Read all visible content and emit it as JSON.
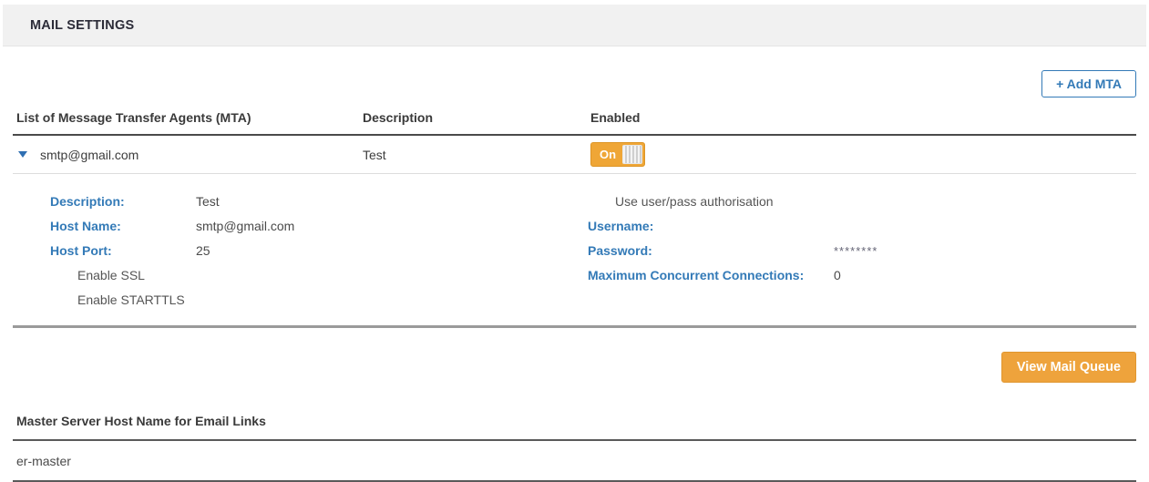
{
  "header": {
    "title": "MAIL SETTINGS"
  },
  "toolbar": {
    "add_mta_label": "+ Add MTA"
  },
  "mta_table": {
    "columns": {
      "agents": "List of Message Transfer Agents (MTA)",
      "description": "Description",
      "enabled": "Enabled"
    },
    "row": {
      "name": "smtp@gmail.com",
      "description": "Test",
      "toggle_label": "On",
      "expander_icon": "caret-down-icon"
    },
    "details": {
      "left": [
        {
          "label": "Description:",
          "value": "Test"
        },
        {
          "label": "Host Name:",
          "value": "smtp@gmail.com"
        },
        {
          "label": "Host Port:",
          "value": "25"
        }
      ],
      "left_options": [
        "Enable SSL",
        "Enable STARTTLS"
      ],
      "right_option": "Use user/pass authorisation",
      "right": [
        {
          "label": "Username:",
          "value": ""
        },
        {
          "label": "Password:",
          "value": "********"
        },
        {
          "label": "Maximum Concurrent Connections:",
          "value": "0"
        }
      ]
    }
  },
  "actions": {
    "view_mail_queue_label": "View Mail Queue"
  },
  "master_server": {
    "heading": "Master Server Host Name for Email Links",
    "value": "er-master"
  },
  "colors": {
    "accent_blue": "#337ab7",
    "accent_orange": "#eea33c",
    "header_bg": "#f1f1f1",
    "divider_dark": "#4a4a4a",
    "divider_gray": "#9a9a9a"
  }
}
